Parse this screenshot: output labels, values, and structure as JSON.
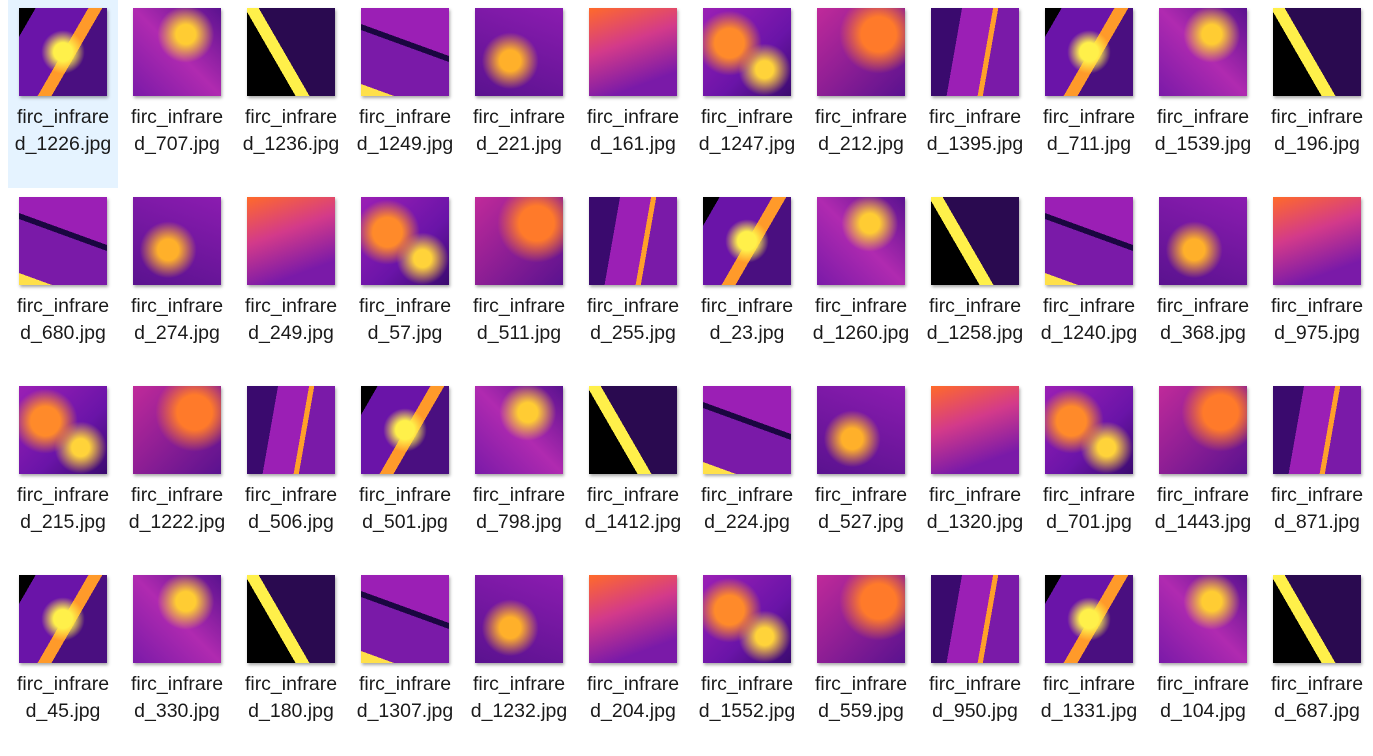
{
  "files": [
    "firc_infrared_1226.jpg",
    "firc_infrared_707.jpg",
    "firc_infrared_1236.jpg",
    "firc_infrared_1249.jpg",
    "firc_infrared_221.jpg",
    "firc_infrared_161.jpg",
    "firc_infrared_1247.jpg",
    "firc_infrared_212.jpg",
    "firc_infrared_1395.jpg",
    "firc_infrared_711.jpg",
    "firc_infrared_1539.jpg",
    "firc_infrared_196.jpg",
    "firc_infrared_680.jpg",
    "firc_infrared_274.jpg",
    "firc_infrared_249.jpg",
    "firc_infrared_57.jpg",
    "firc_infrared_511.jpg",
    "firc_infrared_255.jpg",
    "firc_infrared_23.jpg",
    "firc_infrared_1260.jpg",
    "firc_infrared_1258.jpg",
    "firc_infrared_1240.jpg",
    "firc_infrared_368.jpg",
    "firc_infrared_975.jpg",
    "firc_infrared_215.jpg",
    "firc_infrared_1222.jpg",
    "firc_infrared_506.jpg",
    "firc_infrared_501.jpg",
    "firc_infrared_798.jpg",
    "firc_infrared_1412.jpg",
    "firc_infrared_224.jpg",
    "firc_infrared_527.jpg",
    "firc_infrared_1320.jpg",
    "firc_infrared_701.jpg",
    "firc_infrared_1443.jpg",
    "firc_infrared_871.jpg",
    "firc_infrared_45.jpg",
    "firc_infrared_330.jpg",
    "firc_infrared_180.jpg",
    "firc_infrared_1307.jpg",
    "firc_infrared_1232.jpg",
    "firc_infrared_204.jpg",
    "firc_infrared_1552.jpg",
    "firc_infrared_559.jpg",
    "firc_infrared_950.jpg",
    "firc_infrared_1331.jpg",
    "firc_infrared_104.jpg",
    "firc_infrared_687.jpg"
  ]
}
